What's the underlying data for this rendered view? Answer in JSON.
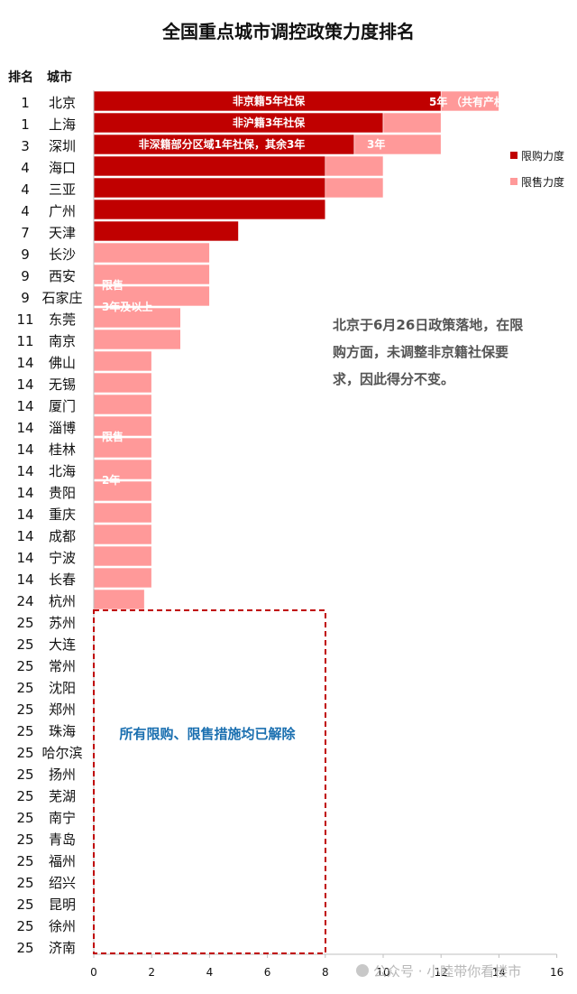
{
  "chart_data": {
    "type": "bar",
    "orientation": "horizontal",
    "stacked": true,
    "title": "全国重点城市调控政策力度排名",
    "col_rank_header": "排名",
    "col_city_header": "城市",
    "categories": [
      "北京",
      "上海",
      "深圳",
      "海口",
      "三亚",
      "广州",
      "天津",
      "长沙",
      "西安",
      "石家庄",
      "东莞",
      "南京",
      "佛山",
      "无锡",
      "厦门",
      "淄博",
      "桂林",
      "北海",
      "贵阳",
      "重庆",
      "成都",
      "宁波",
      "长春",
      "杭州",
      "苏州",
      "大连",
      "常州",
      "沈阳",
      "郑州",
      "珠海",
      "哈尔滨",
      "扬州",
      "芜湖",
      "南宁",
      "青岛",
      "福州",
      "绍兴",
      "昆明",
      "徐州",
      "济南"
    ],
    "ranks": [
      "1",
      "1",
      "3",
      "4",
      "4",
      "4",
      "7",
      "9",
      "9",
      "9",
      "11",
      "11",
      "14",
      "14",
      "14",
      "14",
      "14",
      "14",
      "14",
      "14",
      "14",
      "14",
      "14",
      "24",
      "25",
      "25",
      "25",
      "25",
      "25",
      "25",
      "25",
      "25",
      "25",
      "25",
      "25",
      "25",
      "25",
      "25",
      "25",
      "25"
    ],
    "series": [
      {
        "name": "限购力度",
        "color": "#c00000",
        "values": [
          12,
          10,
          9,
          8,
          8,
          8,
          5,
          0,
          0,
          0,
          0,
          0,
          0,
          0,
          0,
          0,
          0,
          0,
          0,
          0,
          0,
          0,
          0,
          0,
          0,
          0,
          0,
          0,
          0,
          0,
          0,
          0,
          0,
          0,
          0,
          0,
          0,
          0,
          0,
          0
        ]
      },
      {
        "name": "限售力度",
        "color": "#ff9999",
        "values": [
          2,
          2,
          3,
          2,
          2,
          0,
          0,
          4,
          4,
          4,
          3,
          3,
          2,
          2,
          2,
          2,
          2,
          2,
          2,
          2,
          2,
          2,
          2,
          1.75,
          0,
          0,
          0,
          0,
          0,
          0,
          0,
          0,
          0,
          0,
          0,
          0,
          0,
          0,
          0,
          0
        ]
      }
    ],
    "xlim": [
      0,
      16
    ],
    "xticks": [
      "0",
      "2",
      "4",
      "6",
      "8",
      "10",
      "12",
      "14",
      "16"
    ],
    "legend_position": "right",
    "bar_labels": [
      {
        "text": "非京籍5年社保",
        "row": 0
      },
      {
        "text": "5年",
        "row": 0
      },
      {
        "text": "（共有产权房）",
        "row": 0
      },
      {
        "text": "非沪籍3年社保",
        "row": 1
      },
      {
        "text": "非深籍部分区域1年社保，其余3年",
        "row": 2
      },
      {
        "text": "3年",
        "row": 2
      },
      {
        "text": "限售",
        "row": 9
      },
      {
        "text": "3年及以上",
        "row": 10
      },
      {
        "text": "限售",
        "row": 16
      },
      {
        "text": "2年",
        "row": 18
      }
    ],
    "annotation_lines": [
      "北京于6月26日政策落地，在限",
      "购方面，未调整非京籍社保要",
      "求，因此得分不变。"
    ],
    "lifted_label": "所有限购、限售措施均已解除",
    "watermark": "公众号 · 小睦带你看楼市"
  }
}
